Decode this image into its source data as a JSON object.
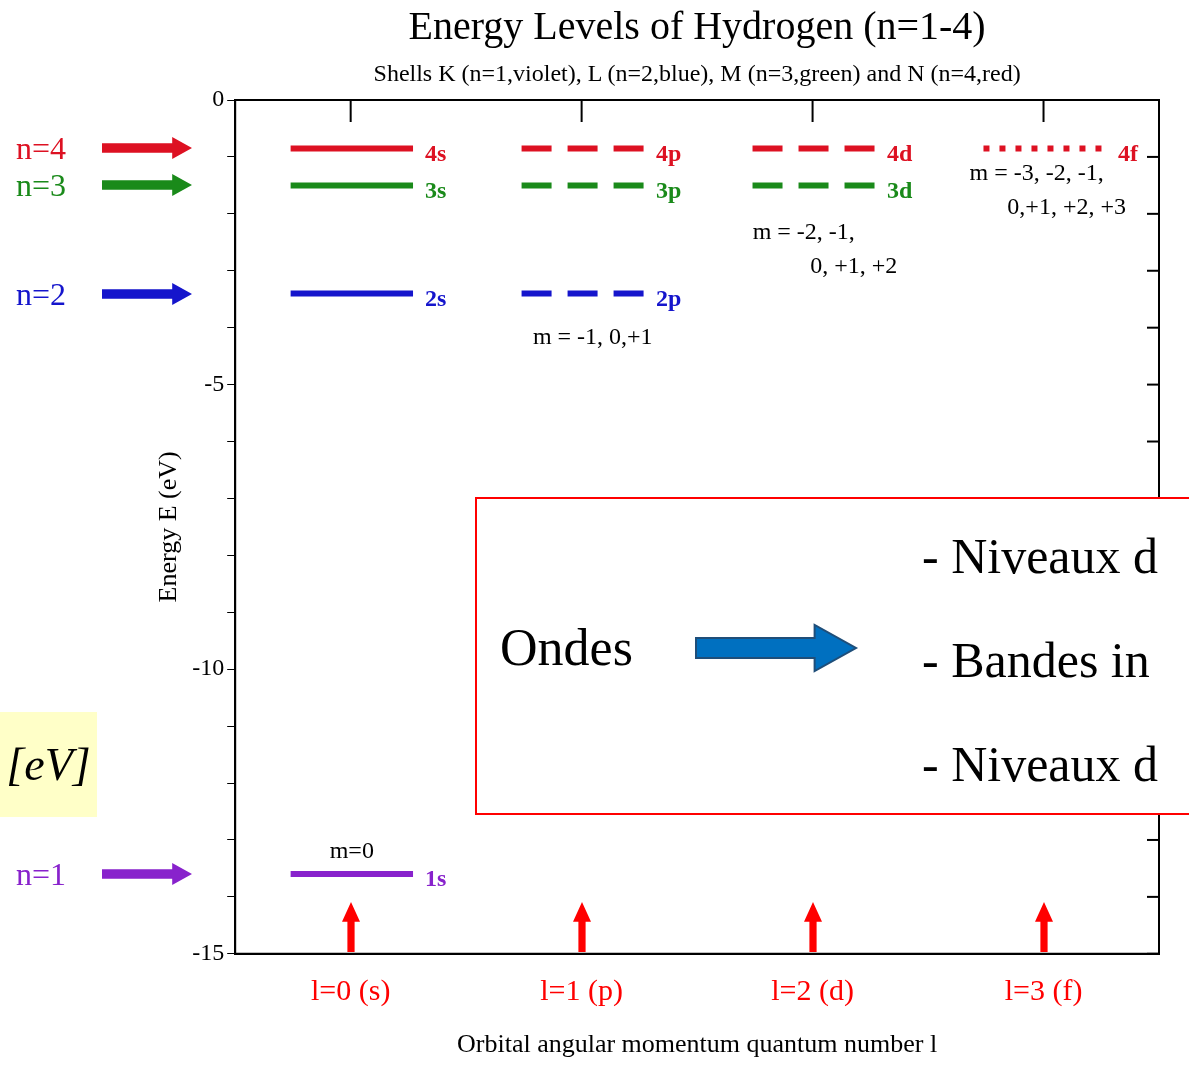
{
  "chart_data": {
    "type": "line",
    "title": "Energy Levels of Hydrogen (n=1-4)",
    "subtitle": "Shells K (n=1,violet), L (n=2,blue), M (n=3,green) and N (n=4,red)",
    "xlabel": "Orbital angular momentum quantum number l",
    "ylabel": "Energy E (eV)",
    "xlim": [
      -0.5,
      3.5
    ],
    "xticks": [
      {
        "value": 0,
        "label": "l=0 (s)"
      },
      {
        "value": 1,
        "label": "l=1 (p)"
      },
      {
        "value": 2,
        "label": "l=2 (d)"
      },
      {
        "value": 3,
        "label": "l=3 (f)"
      }
    ],
    "ylim": [
      -15,
      0
    ],
    "yticks": [
      -15,
      {
        "value": -14,
        "label": null
      },
      {
        "value": -13,
        "label": null
      },
      {
        "value": -12,
        "label": null
      },
      {
        "value": -11,
        "label": null
      },
      -10,
      {
        "value": -9,
        "label": null
      },
      {
        "value": -8,
        "label": null
      },
      {
        "value": -7,
        "label": null
      },
      {
        "value": -6,
        "label": null
      },
      -5,
      {
        "value": -4,
        "label": null
      },
      {
        "value": -3,
        "label": null
      },
      {
        "value": -2,
        "label": null
      },
      {
        "value": -1,
        "label": null
      },
      0
    ],
    "grid": false,
    "legend": false,
    "marker": "none",
    "series": [
      {
        "name": "4s",
        "color": "#dd1122",
        "line_style": "solid",
        "x": [
          -0.26,
          0.27
        ],
        "values": [
          -0.85,
          -0.85
        ]
      },
      {
        "name": "3s",
        "color": "#1a8a1a",
        "line_style": "solid",
        "x": [
          -0.26,
          0.27
        ],
        "values": [
          -1.5,
          -1.5
        ]
      },
      {
        "name": "2s",
        "color": "#1515cc",
        "line_style": "solid",
        "x": [
          -0.26,
          0.27
        ],
        "values": [
          -3.4,
          -3.4
        ]
      },
      {
        "name": "1s",
        "color": "#8822cc",
        "line_style": "solid",
        "x": [
          -0.26,
          0.27
        ],
        "values": [
          -13.6,
          -13.6
        ]
      },
      {
        "name": "4p",
        "color": "#dd1122",
        "line_style": "dashed",
        "x": [
          0.74,
          1.27
        ],
        "values": [
          -0.85,
          -0.85
        ]
      },
      {
        "name": "3p",
        "color": "#1a8a1a",
        "line_style": "dashed",
        "x": [
          0.74,
          1.27
        ],
        "values": [
          -1.5,
          -1.5
        ]
      },
      {
        "name": "2p",
        "color": "#1515cc",
        "line_style": "dashed",
        "x": [
          0.74,
          1.27
        ],
        "values": [
          -3.4,
          -3.4
        ]
      },
      {
        "name": "4d",
        "color": "#dd1122",
        "line_style": "dashed",
        "x": [
          1.74,
          2.27
        ],
        "values": [
          -0.85,
          -0.85
        ]
      },
      {
        "name": "3d",
        "color": "#1a8a1a",
        "line_style": "dashed",
        "x": [
          1.74,
          2.27
        ],
        "values": [
          -1.5,
          -1.5
        ]
      },
      {
        "name": "4f",
        "color": "#dd1122",
        "line_style": "dotted",
        "x": [
          2.74,
          3.27
        ],
        "values": [
          -0.85,
          -0.85
        ]
      }
    ],
    "annotations": [
      "n=4",
      "n=3",
      "n=2",
      "n=1",
      "m=0",
      "m = -1, 0,+1",
      "m = -2, -1,",
      "0, +1, +2",
      "m = -3, -2, -1,",
      "0,+1, +2, +3",
      "[eV]",
      "Ondes",
      "- Niveaux d",
      "- Bandes in",
      "- Niveaux d"
    ]
  }
}
